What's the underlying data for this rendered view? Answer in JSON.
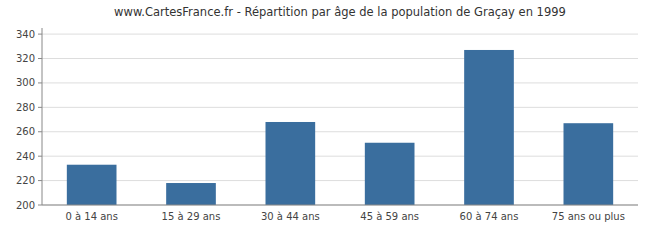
{
  "chart_data": {
    "type": "bar",
    "title": "www.CartesFrance.fr - Répartition par âge de la population de Graçay en 1999",
    "categories": [
      "0 à 14 ans",
      "15 à 29 ans",
      "30 à 44 ans",
      "45 à 59 ans",
      "60 à 74 ans",
      "75 ans ou plus"
    ],
    "values": [
      233,
      218,
      268,
      251,
      327,
      267
    ],
    "color": "#3a6e9e",
    "ylim": [
      200,
      345
    ],
    "yticks": [
      200,
      220,
      240,
      260,
      280,
      300,
      320,
      340
    ],
    "grid": true
  }
}
